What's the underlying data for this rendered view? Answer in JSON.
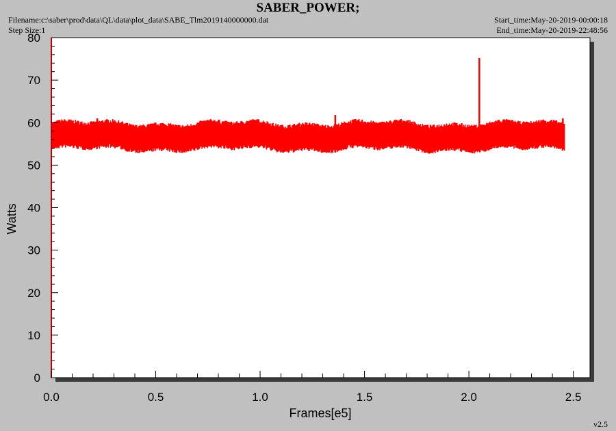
{
  "header": {
    "title": "SABER_POWER;",
    "filename": "Filename:c:\\saber\\prod\\data\\QL\\data\\plot_data\\SABE_Tlm2019140000000.dat",
    "step_size": "Step Size:1",
    "start_time": "Start_time:May-20-2019-00:00:18",
    "end_time": "End_time:May-20-2019-22:48:56"
  },
  "version": "v2.5",
  "chart_data": {
    "type": "line",
    "title": "SABER_POWER;",
    "xlabel": "Frames[e5]",
    "ylabel": "Watts",
    "xlim": [
      0,
      2.58
    ],
    "ylim": [
      0,
      80
    ],
    "x_ticks": [
      "0.0",
      "0.5",
      "1.0",
      "1.5",
      "2.0",
      "2.5"
    ],
    "y_ticks": [
      "0",
      "10",
      "20",
      "30",
      "40",
      "50",
      "60",
      "70",
      "80"
    ],
    "grid": false,
    "series": [
      {
        "color": "#ff0000",
        "x_range": [
          0,
          2.46
        ],
        "mean": 56.8,
        "band": [
          53.5,
          60.0
        ],
        "excursions": [
          {
            "x": 0.22,
            "y": 61.0
          },
          {
            "x": 1.36,
            "y": 61.8
          },
          {
            "x": 1.81,
            "y": 52.7
          },
          {
            "x": 2.05,
            "y": 75.2
          },
          {
            "x": 2.45,
            "y": 61.0
          }
        ]
      }
    ]
  }
}
